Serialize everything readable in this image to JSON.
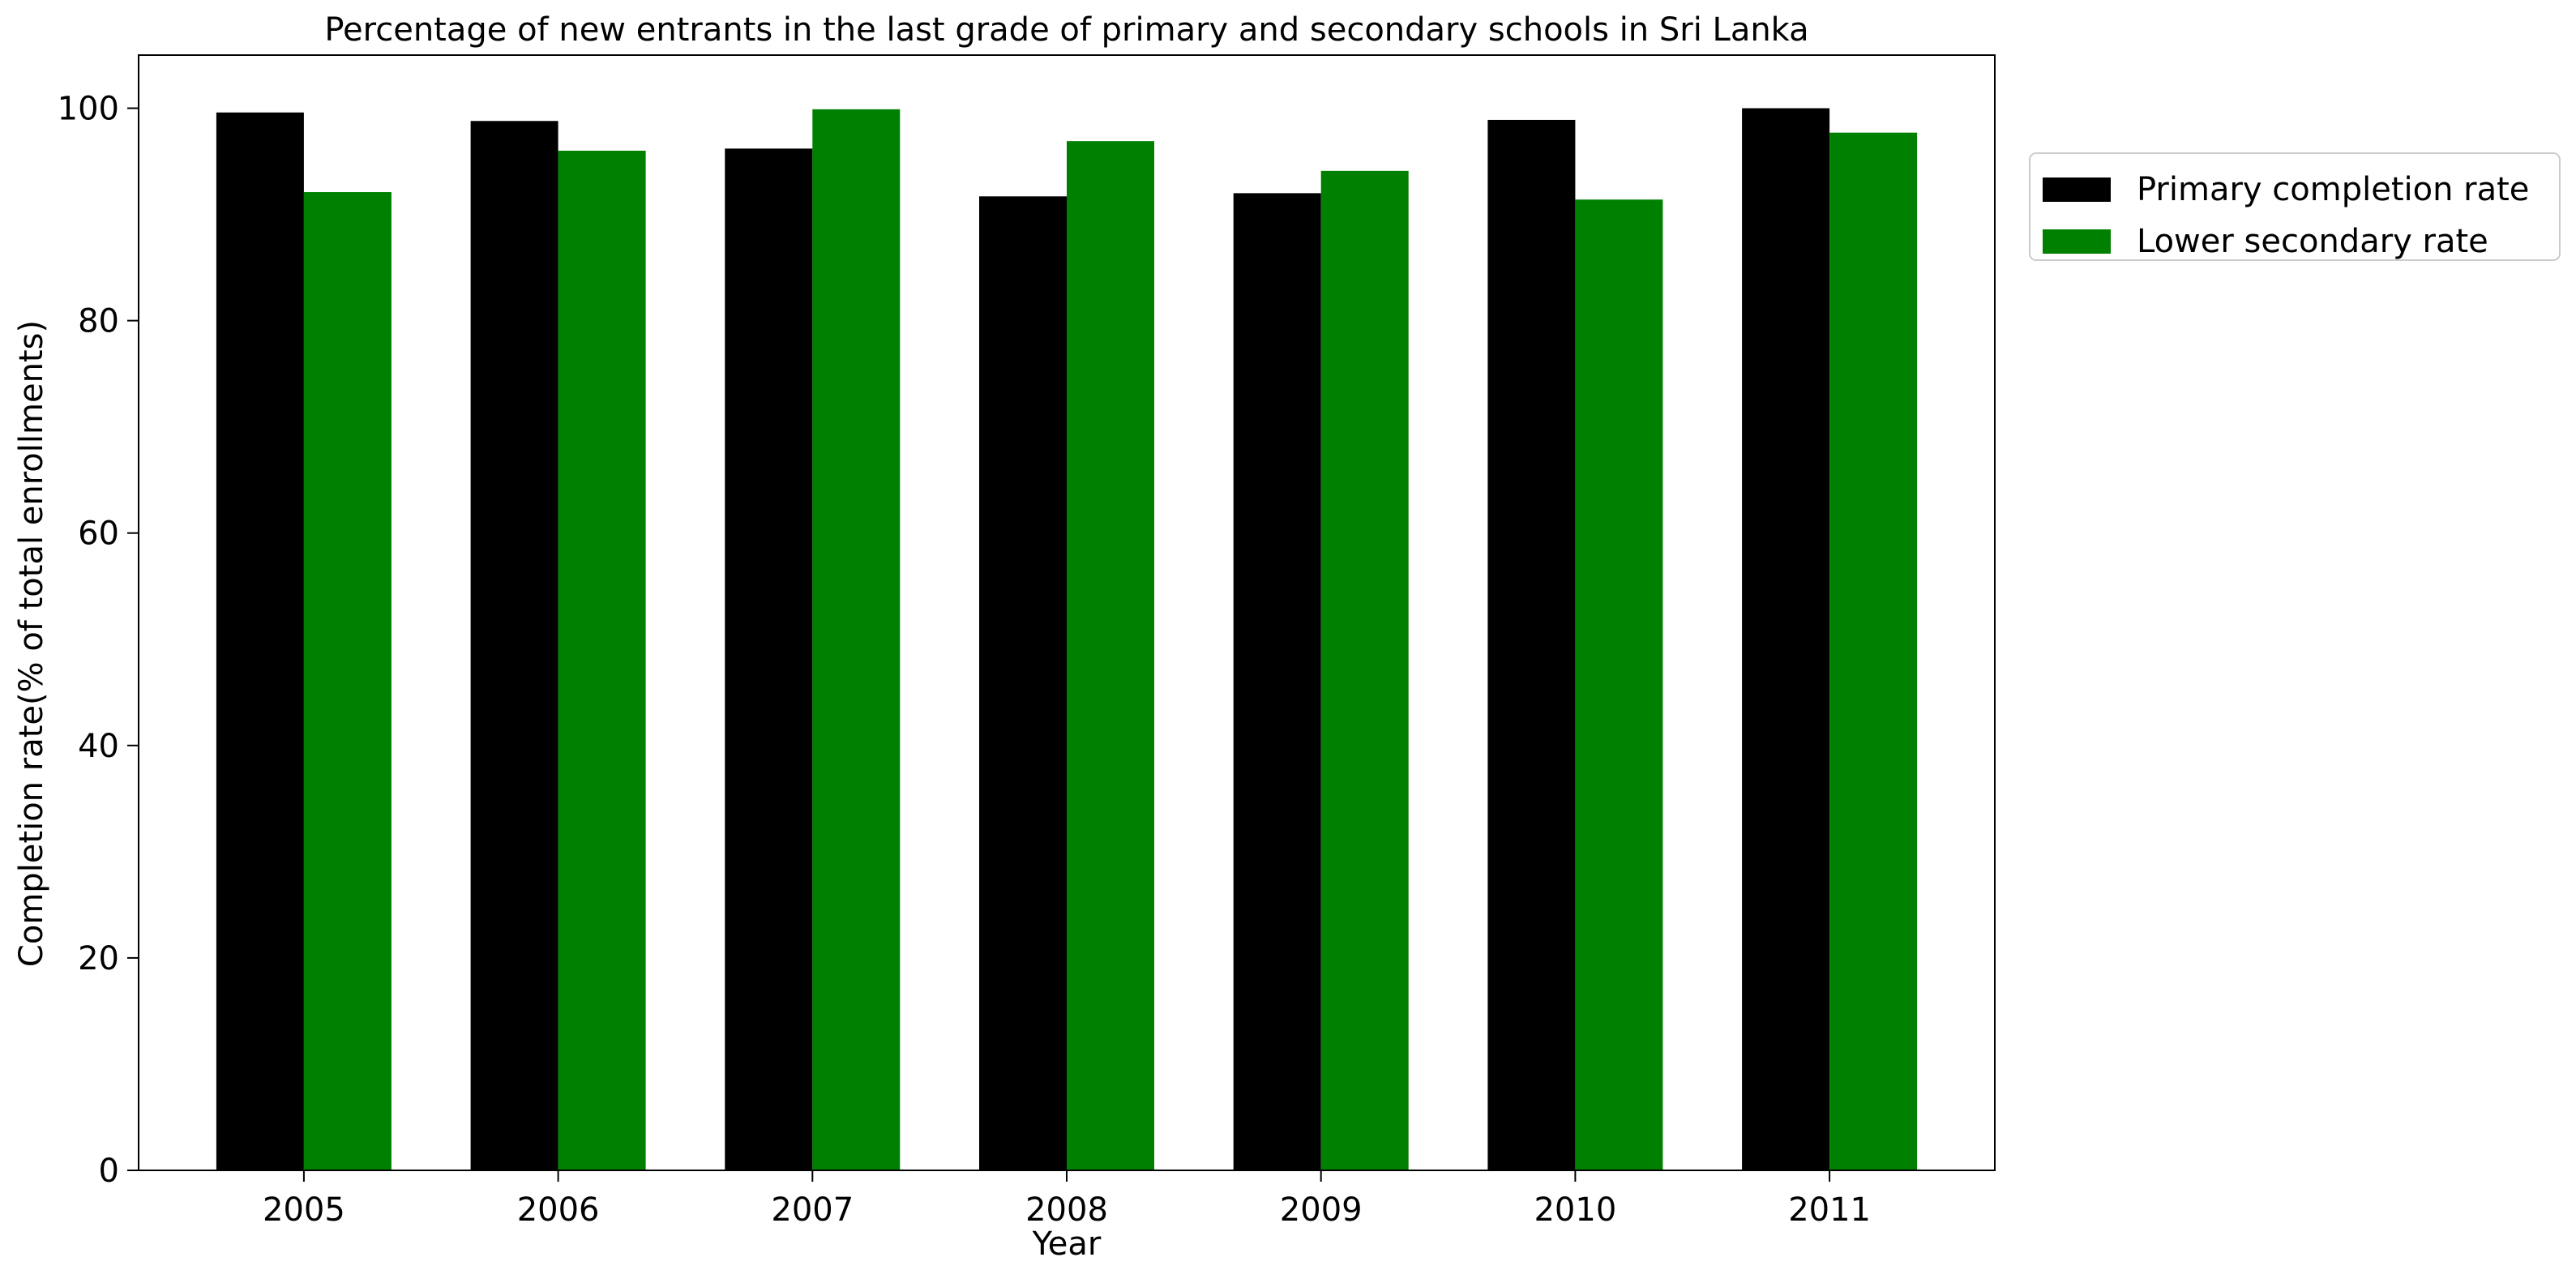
{
  "chart_data": {
    "type": "bar",
    "title": "Percentage of new entrants in the last grade of primary  and secondary schools in Sri Lanka",
    "xlabel": "Year",
    "ylabel": "Completion rate(% of total enrollments)",
    "categories": [
      "2005",
      "2006",
      "2007",
      "2008",
      "2009",
      "2010",
      "2011"
    ],
    "series": [
      {
        "name": "Primary completion rate",
        "color": "#000000",
        "values": [
          99.6,
          98.8,
          96.2,
          91.7,
          92.0,
          98.9,
          100.0
        ]
      },
      {
        "name": "Lower secondary rate",
        "color": "#008000",
        "values": [
          92.1,
          96.0,
          99.9,
          96.9,
          94.1,
          91.4,
          97.7
        ]
      }
    ],
    "ylim": [
      0,
      105
    ],
    "yticks": [
      0,
      20,
      40,
      60,
      80,
      100
    ],
    "grid": false,
    "legend": "outside-top-right"
  }
}
